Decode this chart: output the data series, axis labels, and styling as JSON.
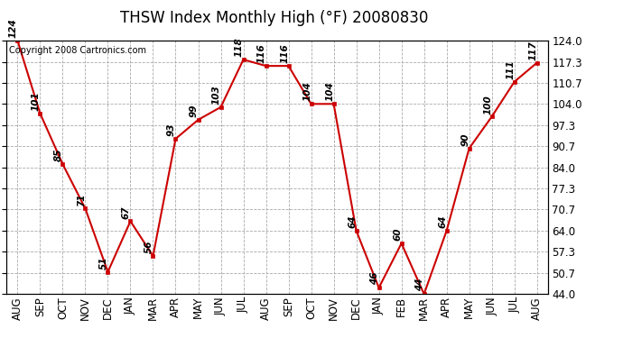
{
  "title": "THSW Index Monthly High (°F) 20080830",
  "copyright": "Copyright 2008 Cartronics.com",
  "months": [
    "AUG",
    "SEP",
    "OCT",
    "NOV",
    "DEC",
    "JAN",
    "MAR",
    "APR",
    "MAY",
    "JUN",
    "JUL",
    "AUG",
    "SEP",
    "OCT",
    "NOV",
    "DEC",
    "JAN",
    "FEB",
    "MAR",
    "APR",
    "MAY",
    "JUN",
    "JUL",
    "AUG"
  ],
  "values": [
    124,
    101,
    85,
    71,
    51,
    67,
    56,
    93,
    99,
    103,
    118,
    116,
    116,
    104,
    104,
    64,
    46,
    60,
    44,
    64,
    90,
    100,
    111,
    117
  ],
  "line_color": "#cc0000",
  "marker_color": "#cc0000",
  "bg_color": "#ffffff",
  "grid_color": "#aaaaaa",
  "ylim": [
    44.0,
    124.0
  ],
  "yticks": [
    44.0,
    50.7,
    57.3,
    64.0,
    70.7,
    77.3,
    84.0,
    90.7,
    97.3,
    104.0,
    110.7,
    117.3,
    124.0
  ],
  "ytick_labels": [
    "44.0",
    "50.7",
    "57.3",
    "64.0",
    "70.7",
    "77.3",
    "84.0",
    "90.7",
    "97.3",
    "104.0",
    "110.7",
    "117.3",
    "124.0"
  ],
  "title_fontsize": 12,
  "tick_fontsize": 8.5,
  "label_fontsize": 7.5,
  "copyright_fontsize": 7
}
